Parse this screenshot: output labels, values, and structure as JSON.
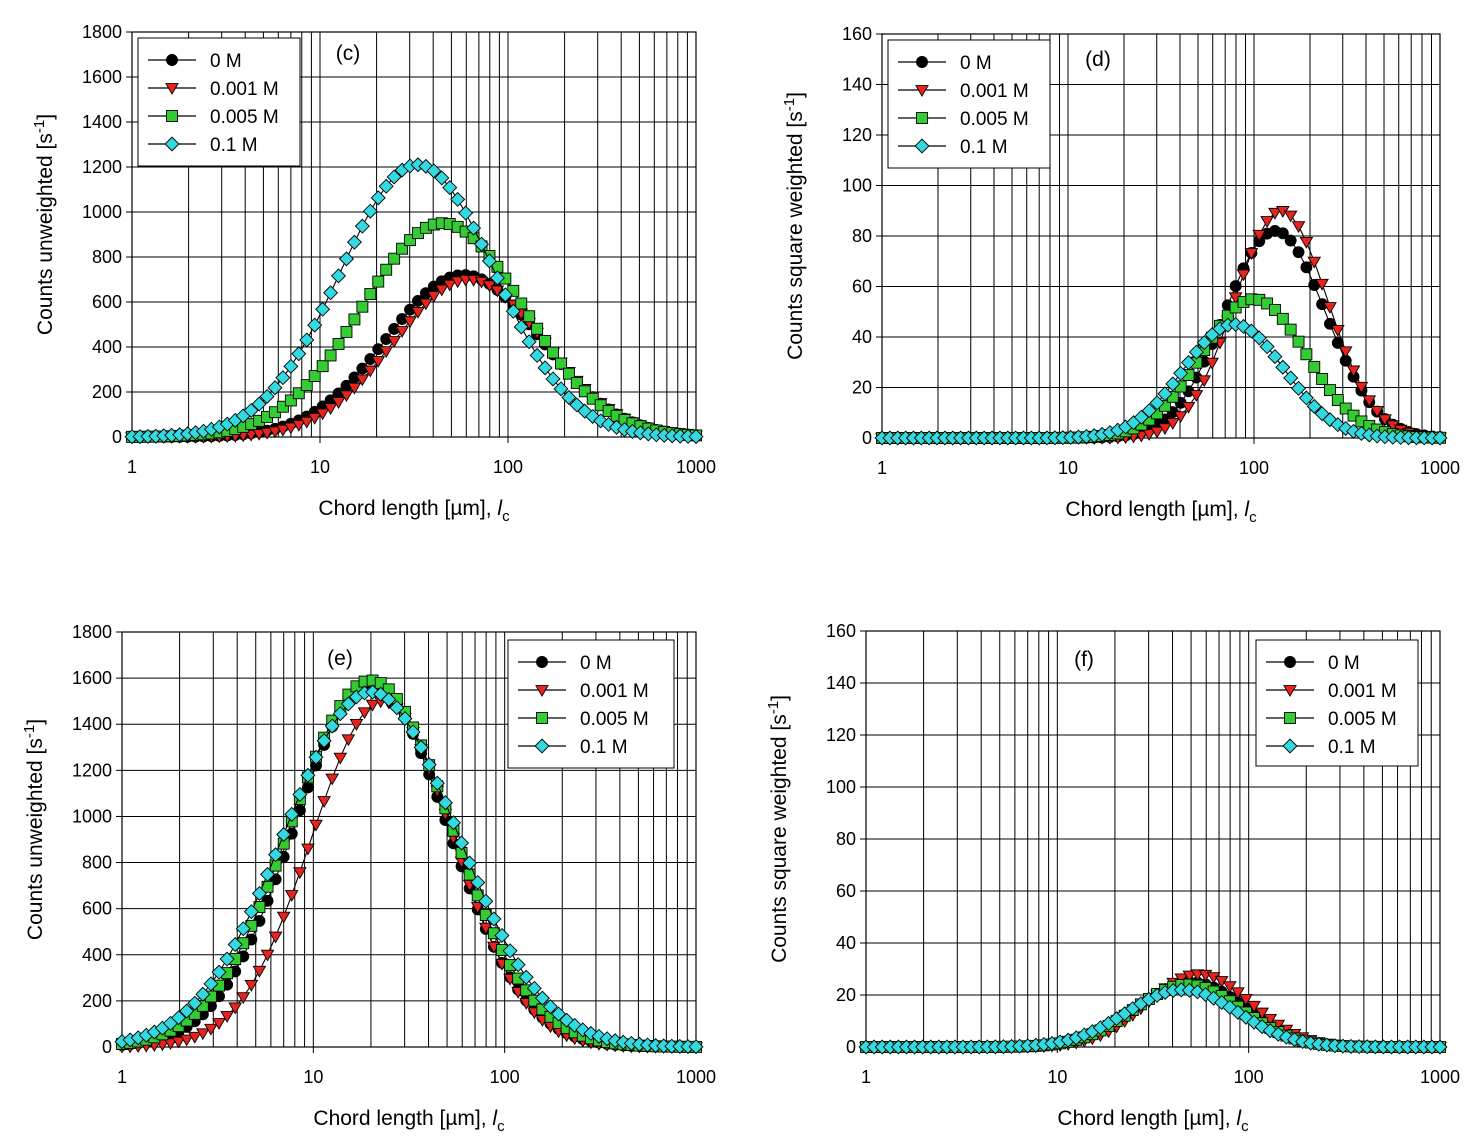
{
  "chart_data": [
    {
      "type": "scatter",
      "panel": "(c)",
      "xlabel": "Chord length [µm], ",
      "xlabel_italic": "l",
      "xlabel_sub": "c",
      "ylabel": "Counts unweighted [s",
      "ylabel_sup": "-1",
      "ylabel_end": "]",
      "x_scale": "log",
      "xlim": [
        1,
        1000
      ],
      "ylim": [
        0,
        1800
      ],
      "x_ticks": [
        "1",
        "10",
        "100",
        "1000"
      ],
      "y_ticks": [
        "0",
        "200",
        "400",
        "600",
        "800",
        "1000",
        "1200",
        "1400",
        "1600",
        "1800"
      ],
      "grid": true,
      "legend": "top-left",
      "series": [
        {
          "name": "0 M",
          "color": "#000000",
          "marker": "circle",
          "peak_x": 58,
          "peak_y": 720,
          "sigma": 0.41
        },
        {
          "name": "0.001 M",
          "color": "#e8231d",
          "marker": "triangle-down",
          "peak_x": 62,
          "peak_y": 700,
          "sigma": 0.4
        },
        {
          "name": "0.005 M",
          "color": "#33cc33",
          "marker": "square",
          "peak_x": 45,
          "peak_y": 950,
          "sigma": 0.43
        },
        {
          "name": "0.1 M",
          "color": "#33d9e0",
          "marker": "diamond",
          "peak_x": 33,
          "peak_y": 1210,
          "sigma": 0.41
        }
      ]
    },
    {
      "type": "scatter",
      "panel": "(d)",
      "xlabel": "Chord length [µm], ",
      "xlabel_italic": "l",
      "xlabel_sub": "c",
      "ylabel": "Counts square weighted [s",
      "ylabel_sup": "-1",
      "ylabel_end": "]",
      "x_scale": "log",
      "xlim": [
        1,
        1000
      ],
      "ylim": [
        0,
        160
      ],
      "x_ticks": [
        "1",
        "10",
        "100",
        "1000"
      ],
      "y_ticks": [
        "0",
        "20",
        "40",
        "60",
        "80",
        "100",
        "120",
        "140",
        "160"
      ],
      "grid": true,
      "legend": "top-left",
      "series": [
        {
          "name": "0 M",
          "color": "#000000",
          "marker": "circle",
          "peak_x": 130,
          "peak_y": 82,
          "sigma": 0.27
        },
        {
          "name": "0.001 M",
          "color": "#e8231d",
          "marker": "triangle-down",
          "peak_x": 140,
          "peak_y": 90,
          "sigma": 0.25
        },
        {
          "name": "0.005 M",
          "color": "#33cc33",
          "marker": "square",
          "peak_x": 100,
          "peak_y": 55,
          "sigma": 0.28
        },
        {
          "name": "0.1 M",
          "color": "#33d9e0",
          "marker": "diamond",
          "peak_x": 78,
          "peak_y": 45,
          "sigma": 0.27
        }
      ]
    },
    {
      "type": "scatter",
      "panel": "(e)",
      "xlabel": "Chord length [µm], ",
      "xlabel_italic": "l",
      "xlabel_sub": "c",
      "ylabel": "Counts unweighted [s",
      "ylabel_sup": "-1",
      "ylabel_end": "]",
      "x_scale": "log",
      "xlim": [
        1,
        1000
      ],
      "ylim": [
        0,
        1800
      ],
      "x_ticks": [
        "1",
        "10",
        "100",
        "1000"
      ],
      "y_ticks": [
        "0",
        "200",
        "400",
        "600",
        "800",
        "1000",
        "1200",
        "1400",
        "1600",
        "1800"
      ],
      "grid": true,
      "legend": "top-right",
      "series": [
        {
          "name": "0 M",
          "color": "#000000",
          "marker": "circle",
          "peak_x": 20,
          "peak_y": 1580,
          "sigma": 0.4
        },
        {
          "name": "0.001 M",
          "color": "#e8231d",
          "marker": "triangle-down",
          "peak_x": 23,
          "peak_y": 1500,
          "sigma": 0.37
        },
        {
          "name": "0.005 M",
          "color": "#33cc33",
          "marker": "square",
          "peak_x": 20,
          "peak_y": 1590,
          "sigma": 0.42
        },
        {
          "name": "0.1 M",
          "color": "#33d9e0",
          "marker": "diamond",
          "peak_x": 20,
          "peak_y": 1540,
          "sigma": 0.45
        }
      ]
    },
    {
      "type": "scatter",
      "panel": "(f)",
      "xlabel": "Chord length [µm], ",
      "xlabel_italic": "l",
      "xlabel_sub": "c",
      "ylabel": "Counts square weighted [s",
      "ylabel_sup": "-1",
      "ylabel_end": "]",
      "x_scale": "log",
      "xlim": [
        1,
        1000
      ],
      "ylim": [
        0,
        160
      ],
      "x_ticks": [
        "1",
        "10",
        "100",
        "1000"
      ],
      "y_ticks": [
        "0",
        "20",
        "40",
        "60",
        "80",
        "100",
        "120",
        "140",
        "160"
      ],
      "grid": true,
      "legend": "top-right",
      "series": [
        {
          "name": "0 M",
          "color": "#000000",
          "marker": "circle",
          "peak_x": 50,
          "peak_y": 25,
          "sigma": 0.28
        },
        {
          "name": "0.001 M",
          "color": "#e8231d",
          "marker": "triangle-down",
          "peak_x": 55,
          "peak_y": 28,
          "sigma": 0.27
        },
        {
          "name": "0.005 M",
          "color": "#33cc33",
          "marker": "square",
          "peak_x": 48,
          "peak_y": 24,
          "sigma": 0.28
        },
        {
          "name": "0.1 M",
          "color": "#33d9e0",
          "marker": "diamond",
          "peak_x": 45,
          "peak_y": 22,
          "sigma": 0.29
        }
      ]
    }
  ]
}
